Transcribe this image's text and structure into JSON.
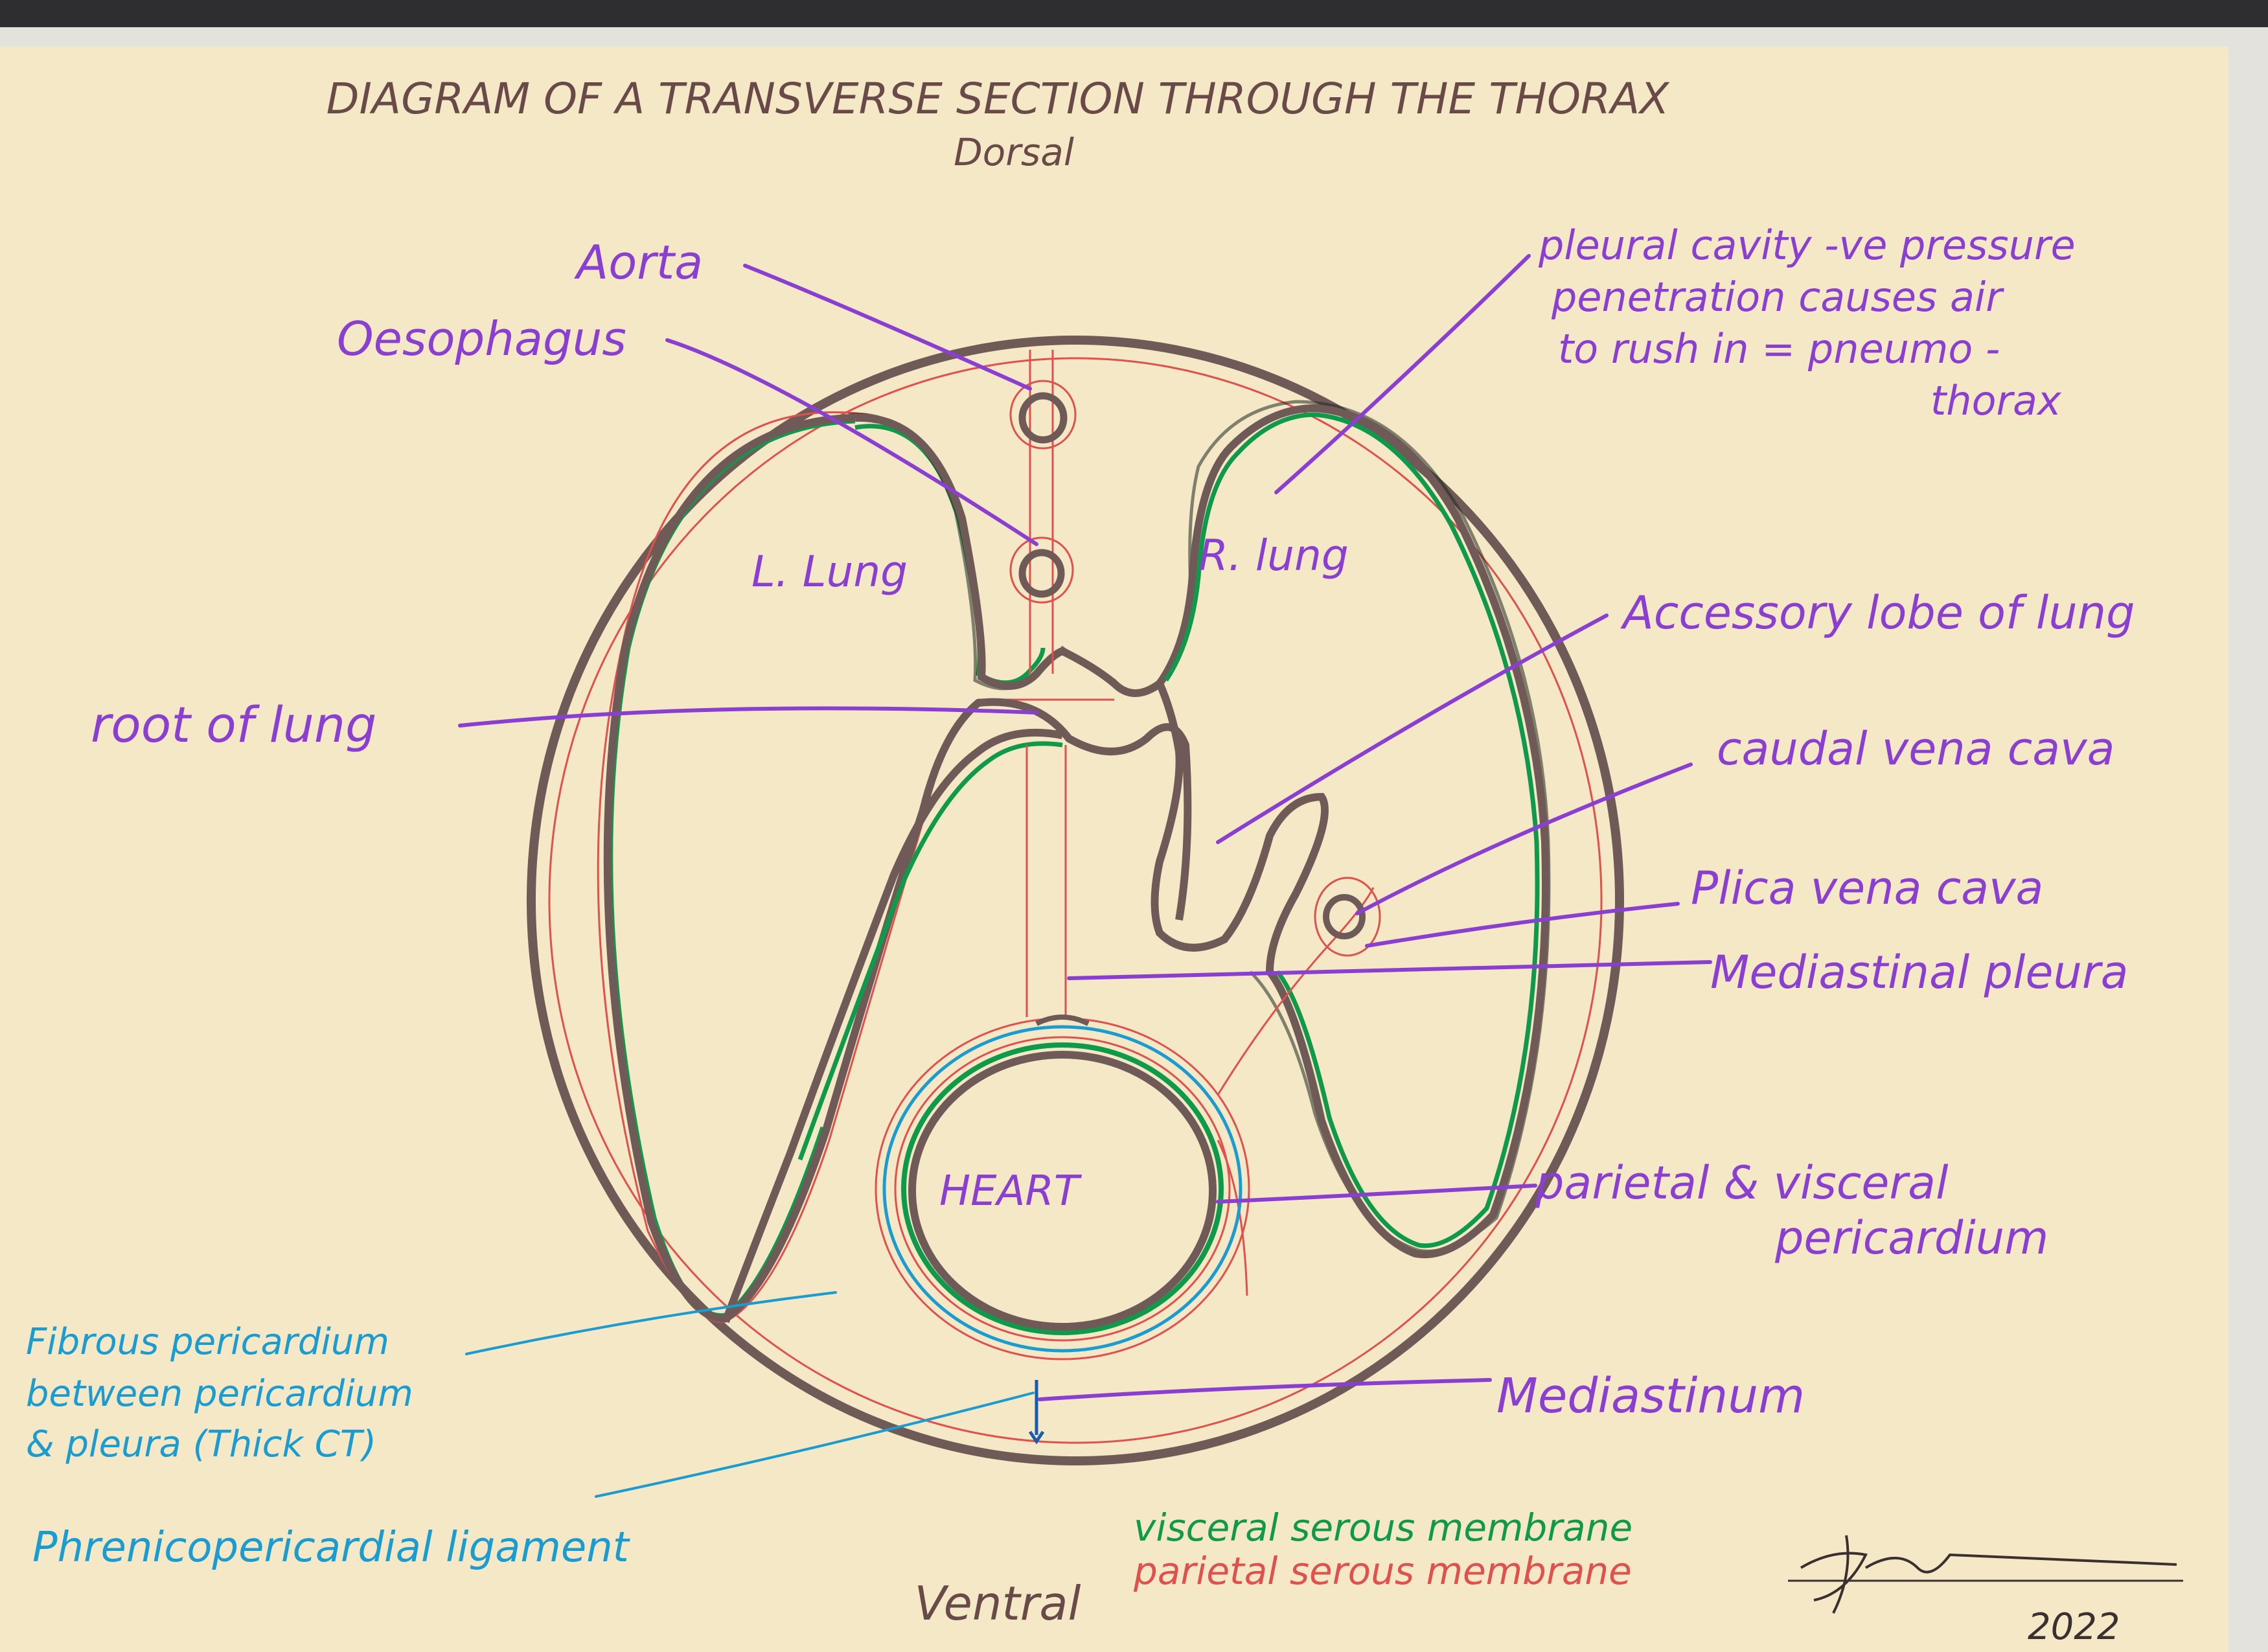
{
  "title": "DIAGRAM OF A TRANSVERSE SECTION THROUGH THE THORAX",
  "orientation_top": "Dorsal",
  "orientation_bottom": "Ventral",
  "colors": {
    "paper": "#f4e8c7",
    "outline": "#6f5a58",
    "parietal": "#e0504c",
    "visceral": "#0e9a4a",
    "label_purple": "#8a3fd0",
    "label_blue": "#1a9cd0",
    "title_brown": "#6a4a48"
  },
  "labels": {
    "aorta": "Aorta",
    "oesophagus": "Oesophagus",
    "left_lung": "L. Lung",
    "right_lung": "R. lung",
    "root_of_lung": "root of lung",
    "heart": "HEART",
    "pleural_cavity_1": "pleural cavity -ve pressure",
    "pleural_cavity_2": "penetration causes air",
    "pleural_cavity_3": "to rush in = pneumo -",
    "pleural_cavity_4": "thorax",
    "accessory_lobe": "Accessory lobe of lung",
    "caudal_vena_cava": "caudal vena cava",
    "plica_vena_cava": "Plica vena cava",
    "mediastinal_pleura": "Mediastinal pleura",
    "pericardium_1": "parietal & visceral",
    "pericardium_2": "pericardium",
    "mediastinum": "Mediastinum",
    "fibrous_1": "Fibrous pericardium",
    "fibrous_2": "between pericardium",
    "fibrous_3": "& pleura (Thick CT)",
    "phrenicopericardial": "Phrenicopericardial ligament"
  },
  "legend": {
    "visceral": "visceral serous membrane",
    "parietal": "parietal serous membrane"
  },
  "signature_year": "2022"
}
